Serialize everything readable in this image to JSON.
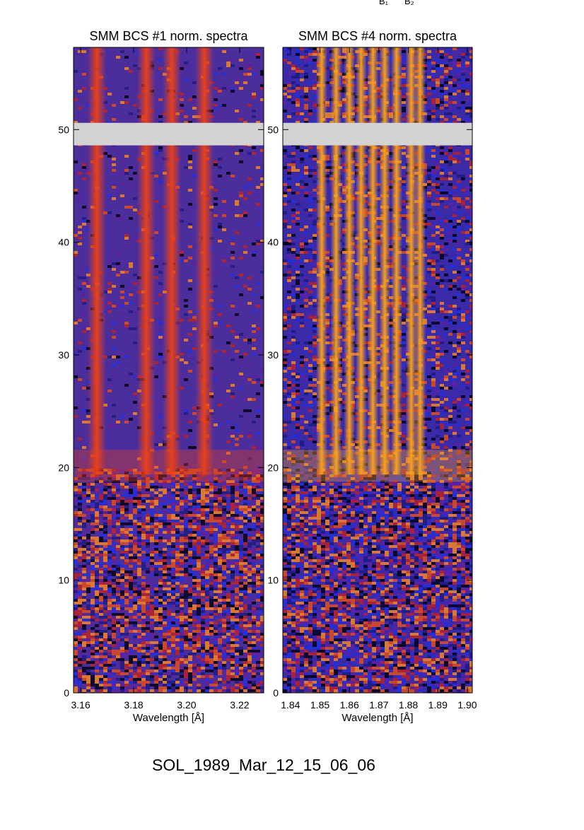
{
  "header_labels": [
    "B₁",
    "B₂"
  ],
  "chart_data": [
    {
      "type": "heatmap",
      "title": "SMM BCS #1 norm. spectra",
      "xlabel": "Wavelength [Å]",
      "xlim": [
        3.1573,
        3.2291
      ],
      "xticks": [
        3.16,
        3.18,
        {
          "value": 3.2,
          "label": "3.20"
        },
        3.22
      ],
      "ylim": [
        0,
        57.3
      ],
      "yticks": [
        0,
        10,
        20,
        30,
        40,
        50
      ],
      "data_gap": [
        48.6,
        50.6
      ],
      "emission_start": 20,
      "line_positions": [
        3.1661,
        3.1848,
        3.1944,
        3.2067
      ],
      "background_color": "#4b2e9c",
      "line_color": "#e8401a"
    },
    {
      "type": "heatmap",
      "title": "SMM BCS #4 norm. spectra",
      "xlabel": "Wavelength [Å]",
      "xlim": [
        1.8374,
        1.9017
      ],
      "xticks": [
        1.84,
        1.85,
        1.86,
        1.87,
        1.88,
        1.89,
        {
          "value": 1.9,
          "label": "1.90"
        }
      ],
      "ylim": [
        0,
        57.3
      ],
      "yticks": [
        0,
        10,
        20,
        30,
        40,
        50
      ],
      "data_gap": [
        48.6,
        50.6
      ],
      "emission_start": 20,
      "line_positions": [
        1.8506,
        1.8555,
        1.86,
        1.864,
        1.868,
        1.872,
        1.876,
        1.881,
        1.884
      ],
      "background_color": "#3a2aa8",
      "line_color": "#f5a020"
    }
  ],
  "footer": "SOL_1989_Mar_12_15_06_06"
}
